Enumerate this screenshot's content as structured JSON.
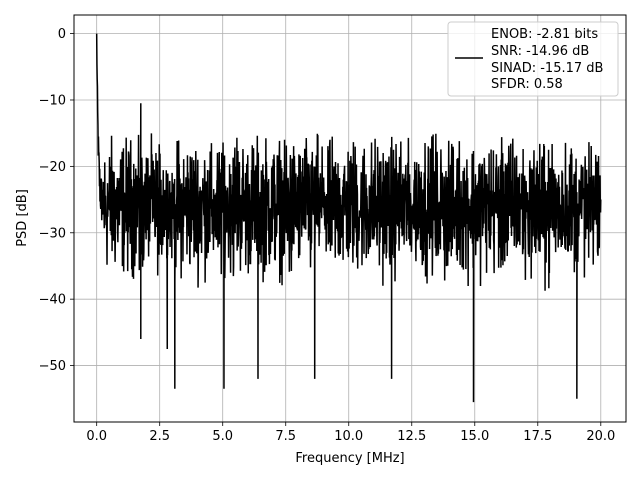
{
  "chart_data": {
    "type": "line",
    "title": "",
    "xlabel": "Frequency [MHz]",
    "ylabel": "PSD [dB]",
    "xlim": [
      -0.9,
      21.0
    ],
    "ylim": [
      -58.5,
      2.8
    ],
    "xticks": [
      0.0,
      2.5,
      5.0,
      7.5,
      10.0,
      12.5,
      15.0,
      17.5,
      20.0
    ],
    "xtick_labels": [
      "0.0",
      "2.5",
      "5.0",
      "7.5",
      "10.0",
      "12.5",
      "15.0",
      "17.5",
      "20.0"
    ],
    "yticks": [
      0,
      -10,
      -20,
      -30,
      -40,
      -50
    ],
    "ytick_labels": [
      "0",
      "−10",
      "−20",
      "−30",
      "−40",
      "−50"
    ],
    "grid": true,
    "legend": {
      "placement": "top-right",
      "entries": [
        "ENOB: -2.81 bits",
        "SNR: -14.96 dB",
        "SINAD: -15.17 dB",
        "SFDR: 0.58"
      ]
    },
    "series": [
      {
        "color": "#000000",
        "x_range": [
          0.0,
          20.0
        ],
        "num_points": 2000,
        "peak_value": 0,
        "noise_floor_center": -26,
        "envelope_max": -15,
        "envelope_min": -42,
        "spurs": [
          {
            "x": 1.75,
            "y": -10.5
          },
          {
            "x": 1.75,
            "y": -46
          },
          {
            "x": 2.8,
            "y": -47.5
          },
          {
            "x": 3.1,
            "y": -53.5
          },
          {
            "x": 5.05,
            "y": -53.5
          },
          {
            "x": 6.4,
            "y": -52
          },
          {
            "x": 8.65,
            "y": -52
          },
          {
            "x": 11.7,
            "y": -52
          },
          {
            "x": 14.95,
            "y": -55.5
          },
          {
            "x": 19.05,
            "y": -55
          }
        ]
      }
    ]
  }
}
